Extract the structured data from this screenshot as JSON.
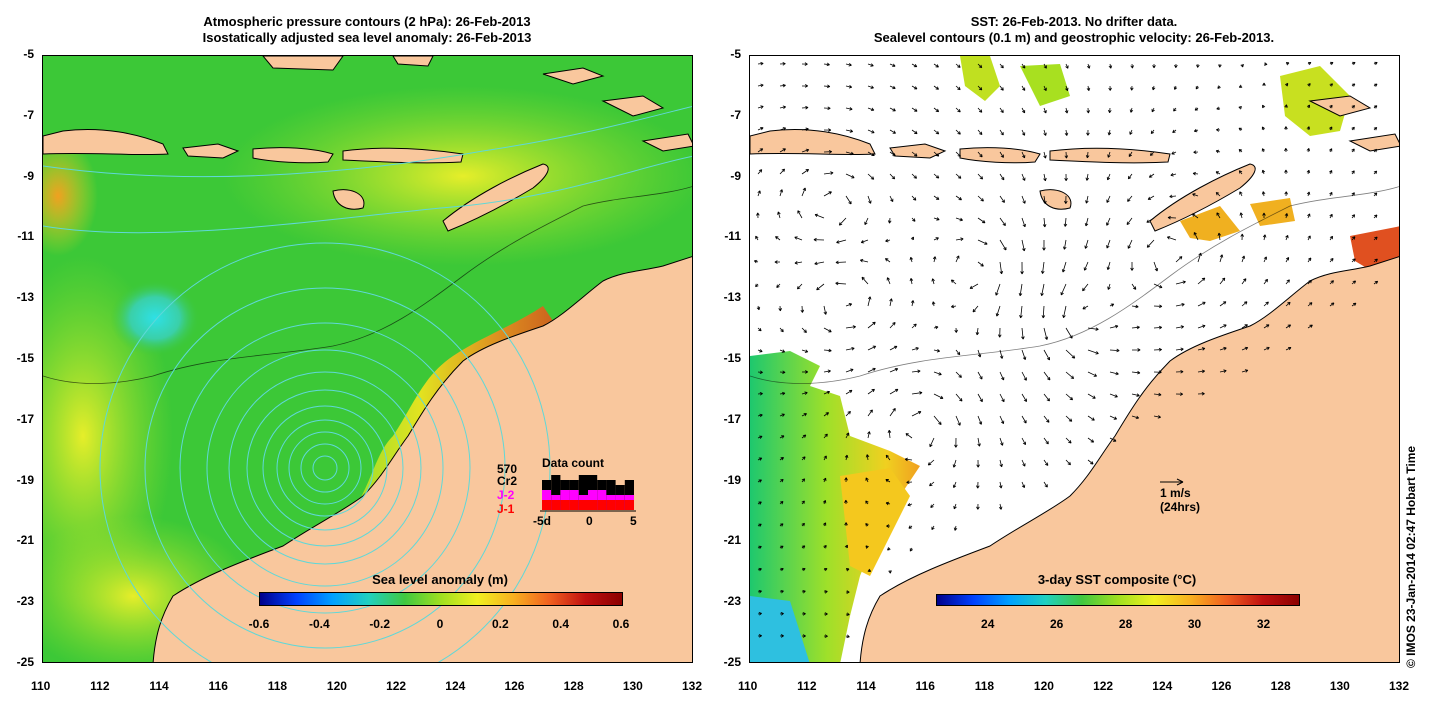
{
  "left_panel": {
    "title_line1": "Atmospheric pressure contours (2 hPa): 26-Feb-2013",
    "title_line2": "Isostatically adjusted sea level anomaly: 26-Feb-2013",
    "colorbar": {
      "title": "Sea level anomaly (m)",
      "labels": [
        "-0.6",
        "-0.4",
        "-0.2",
        "0",
        "0.2",
        "0.4",
        "0.6"
      ],
      "range": [
        -0.6,
        0.6
      ]
    },
    "legend": {
      "satellites": [
        "570",
        "Cr2",
        "J-2",
        "J-1"
      ],
      "satellite_colors": [
        "#000000",
        "#000000",
        "#ff00ff",
        "#ff0000"
      ],
      "title": "Data count",
      "axis_labels": [
        "-5d",
        "0",
        "5"
      ],
      "counts_black": [
        6,
        7,
        6,
        6,
        7,
        7,
        6,
        6,
        5,
        6
      ],
      "counts_magenta": [
        4,
        3,
        4,
        4,
        3,
        4,
        4,
        3,
        3,
        3
      ],
      "counts_red": [
        2,
        2,
        2,
        2,
        2,
        2,
        2,
        2,
        2,
        2
      ]
    }
  },
  "right_panel": {
    "title_line1": "SST: 26-Feb-2013. No drifter data.",
    "title_line2": "Sealevel contours (0.1 m) and geostrophic velocity: 26-Feb-2013.",
    "colorbar": {
      "title": "3-day SST composite (°C)",
      "labels": [
        "24",
        "26",
        "28",
        "30",
        "32"
      ],
      "range": [
        22.5,
        33
      ]
    },
    "velocity_scale": {
      "line1": "1 m/s",
      "line2": "(24hrs)"
    }
  },
  "axes": {
    "x_labels": [
      "110",
      "112",
      "114",
      "116",
      "118",
      "120",
      "122",
      "124",
      "126",
      "128",
      "130",
      "132"
    ],
    "y_labels": [
      "-5",
      "-7",
      "-9",
      "-11",
      "-13",
      "-15",
      "-17",
      "-19",
      "-21",
      "-23",
      "-25"
    ],
    "lon_range": [
      110,
      132
    ],
    "lat_range": [
      -25,
      -5
    ]
  },
  "colors": {
    "land": "#f9c79d",
    "sea_green": "#3cc837",
    "coast": "#000000",
    "contour": "#5fd8d8"
  },
  "copyright": "© IMOS 23-Jan-2014 02:47 Hobart Time"
}
